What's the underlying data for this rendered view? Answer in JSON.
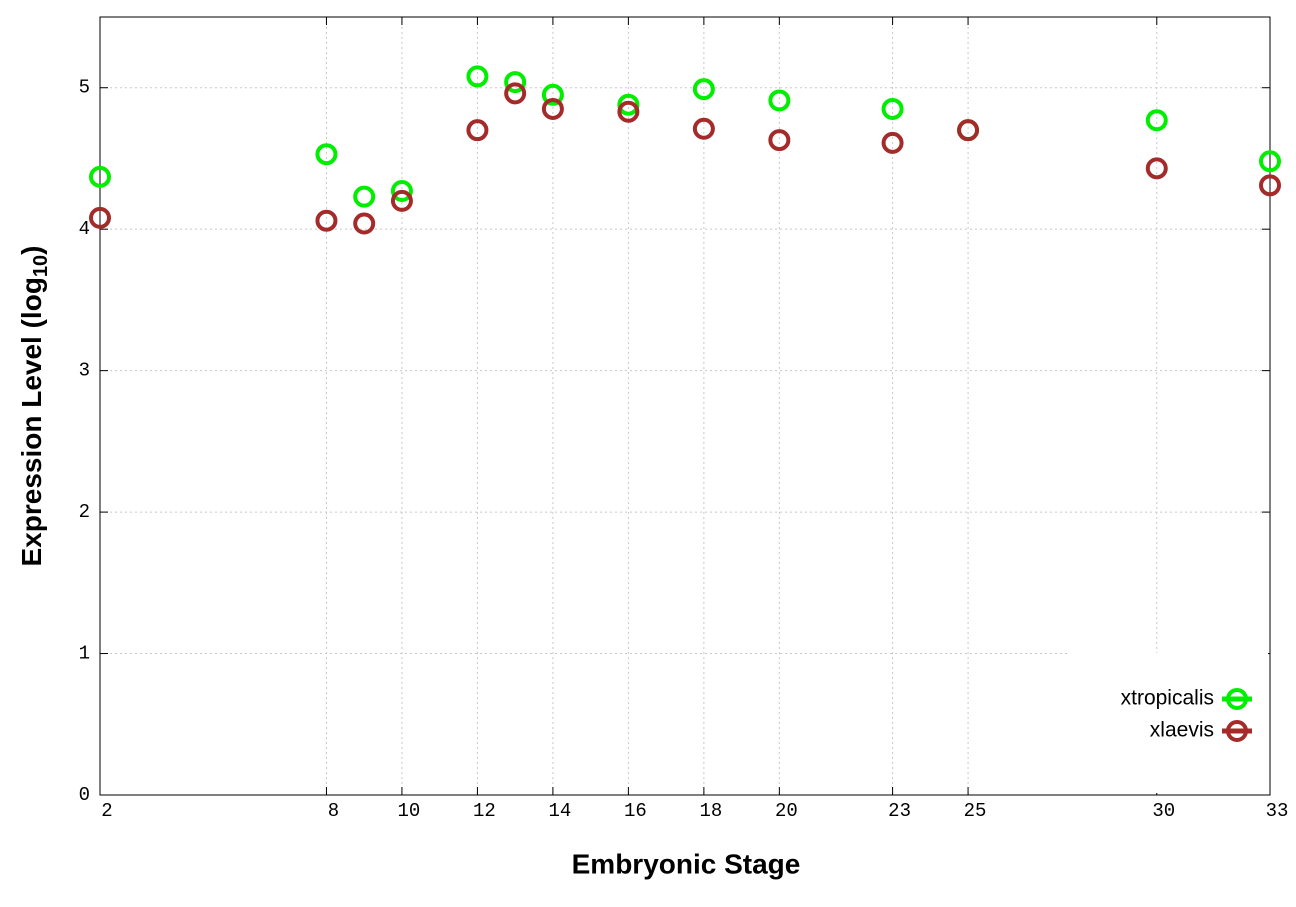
{
  "chart_data": {
    "type": "line",
    "x_label": "Embryonic Stage",
    "y_label": "Expression Level (log",
    "y_label_sub": "10",
    "y_label_end": ")",
    "x": [
      2,
      8,
      9,
      10,
      12,
      13,
      14,
      16,
      18,
      20,
      23,
      25,
      30,
      33
    ],
    "series": [
      {
        "name": "xtropicalis",
        "color": "#00ee00",
        "values": [
          4.37,
          4.53,
          4.23,
          4.27,
          5.08,
          5.04,
          4.95,
          4.88,
          4.99,
          4.91,
          4.85,
          4.7,
          4.77,
          4.48
        ]
      },
      {
        "name": "xlaevis",
        "color": "#a52a2a",
        "values": [
          4.08,
          4.06,
          4.04,
          4.2,
          4.7,
          4.96,
          4.85,
          4.83,
          4.71,
          4.63,
          4.61,
          4.7,
          4.43,
          4.31
        ]
      }
    ],
    "xlim": [
      2,
      33
    ],
    "xticks": [
      2,
      8,
      10,
      12,
      14,
      16,
      18,
      20,
      23,
      25,
      30,
      33
    ],
    "ylim": [
      0,
      5.5
    ],
    "yticks": [
      0,
      1,
      2,
      3,
      4,
      5
    ],
    "grid": true,
    "legend": "bottom-right"
  }
}
